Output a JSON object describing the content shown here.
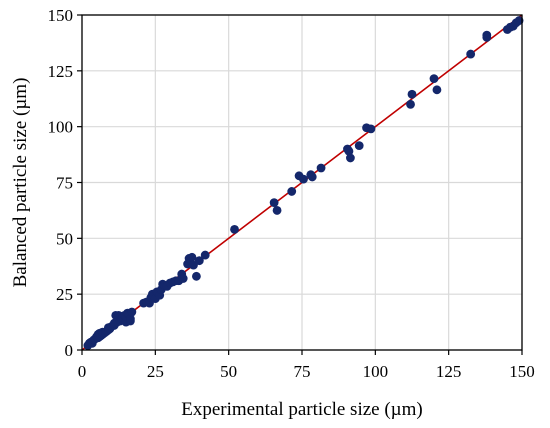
{
  "chart_data": {
    "type": "scatter",
    "xlabel": "Experimental particle size (µm)",
    "ylabel": "Balanced particle size (µm)",
    "xlim": [
      0,
      150
    ],
    "ylim": [
      0,
      150
    ],
    "xticks": [
      0,
      25,
      50,
      75,
      100,
      125,
      150
    ],
    "yticks": [
      0,
      25,
      50,
      75,
      100,
      125,
      150
    ],
    "grid": true,
    "colors": {
      "points": "#14276b",
      "fit_line": "#c00000",
      "grid": "#d9d9d9"
    },
    "fit_line": {
      "x": [
        0,
        150
      ],
      "y": [
        0,
        150
      ]
    },
    "series": [
      {
        "points": [
          [
            2,
            2
          ],
          [
            2.5,
            3
          ],
          [
            3,
            3.5
          ],
          [
            3.5,
            3
          ],
          [
            4,
            4.5
          ],
          [
            4.5,
            5
          ],
          [
            5,
            6
          ],
          [
            5.5,
            5.5
          ],
          [
            5.5,
            7
          ],
          [
            6,
            7.5
          ],
          [
            6,
            6
          ],
          [
            6.5,
            6.5
          ],
          [
            7,
            7
          ],
          [
            7,
            8
          ],
          [
            7.5,
            7.5
          ],
          [
            8,
            8
          ],
          [
            8.5,
            8.5
          ],
          [
            9,
            9
          ],
          [
            9,
            10
          ],
          [
            9.5,
            9.5
          ],
          [
            10,
            10.5
          ],
          [
            11,
            11
          ],
          [
            11,
            12
          ],
          [
            11.5,
            15.5
          ],
          [
            12,
            12.5
          ],
          [
            12.5,
            15.5
          ],
          [
            13,
            13
          ],
          [
            13.5,
            14
          ],
          [
            14,
            14.5
          ],
          [
            14.5,
            15.5
          ],
          [
            15,
            12.5
          ],
          [
            15,
            15
          ],
          [
            15.5,
            16.5
          ],
          [
            16,
            16
          ],
          [
            16.5,
            14
          ],
          [
            17,
            17
          ],
          [
            16.5,
            13
          ],
          [
            21,
            21
          ],
          [
            22,
            21.5
          ],
          [
            23,
            21
          ],
          [
            23.5,
            23.5
          ],
          [
            24,
            25
          ],
          [
            25,
            23
          ],
          [
            25.5,
            26
          ],
          [
            26,
            25.5
          ],
          [
            26.5,
            24.5
          ],
          [
            27,
            27
          ],
          [
            27.5,
            29.5
          ],
          [
            28,
            29
          ],
          [
            29,
            28.5
          ],
          [
            30,
            30
          ],
          [
            31,
            30.5
          ],
          [
            32,
            31
          ],
          [
            33,
            31
          ],
          [
            34,
            34
          ],
          [
            34.5,
            32
          ],
          [
            36,
            38.5
          ],
          [
            36.5,
            41
          ],
          [
            37.5,
            41.5
          ],
          [
            38,
            38
          ],
          [
            39,
            33
          ],
          [
            40,
            40
          ],
          [
            42,
            42.5
          ],
          [
            52,
            54
          ],
          [
            65.5,
            66
          ],
          [
            66.5,
            62.5
          ],
          [
            71.5,
            71
          ],
          [
            74,
            78
          ],
          [
            75.5,
            76.5
          ],
          [
            78,
            78.5
          ],
          [
            78.5,
            77.5
          ],
          [
            81.5,
            81.5
          ],
          [
            90.5,
            90
          ],
          [
            91,
            89
          ],
          [
            91.5,
            86
          ],
          [
            94.5,
            91.5
          ],
          [
            97,
            99.5
          ],
          [
            98.5,
            99
          ],
          [
            112,
            110
          ],
          [
            112.5,
            114.5
          ],
          [
            120,
            121.5
          ],
          [
            121,
            116.5
          ],
          [
            132.5,
            132.5
          ],
          [
            138,
            141
          ],
          [
            138,
            140
          ],
          [
            145,
            143.5
          ],
          [
            146,
            144.5
          ],
          [
            147,
            145
          ],
          [
            148,
            146.5
          ],
          [
            149,
            147.5
          ]
        ]
      }
    ]
  }
}
